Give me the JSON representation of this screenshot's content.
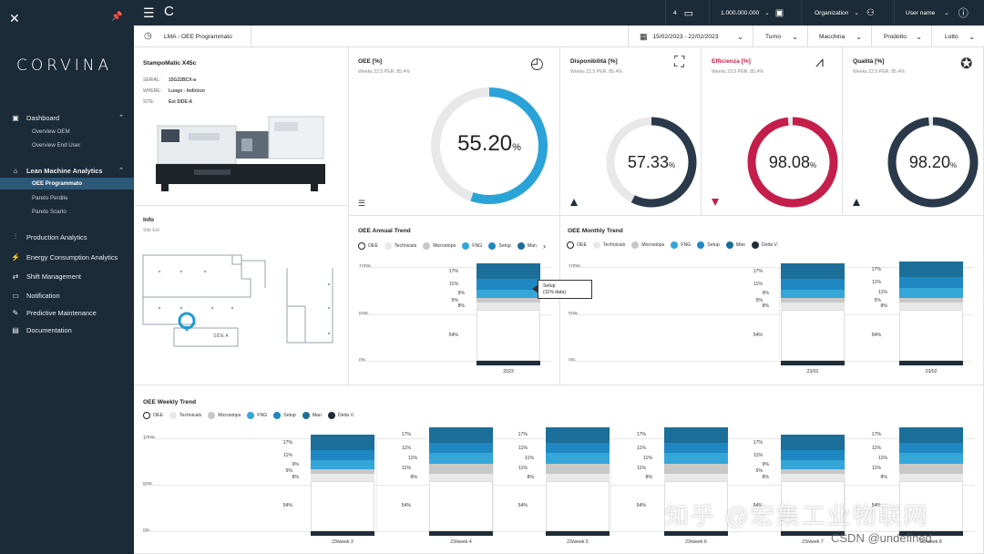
{
  "sidebar": {
    "logo": "CORVINA",
    "groups": [
      {
        "label": "Dashboard",
        "subs": [
          "Overview OEM",
          "Overview End User"
        ]
      },
      {
        "label": "Lean Machine Analytics",
        "subs": [
          "OEE Programmato",
          "Pareto Perdite",
          "Pareto Scarto"
        ]
      },
      {
        "label": "Production Analytics"
      },
      {
        "label": "Energy Consumption Analytics"
      },
      {
        "label": "Shift Management"
      },
      {
        "label": "Notification"
      },
      {
        "label": "Predictive Maintenance"
      },
      {
        "label": "Documentation"
      }
    ]
  },
  "topbar": {
    "alerts": "4",
    "value": "1.000.000.000",
    "org": "Organization",
    "user": "User name"
  },
  "subbar": {
    "breadcrumb": "LMA - OEE Programmato",
    "date": "15/02/2023 - 22/02/2023",
    "filters": [
      "Turno",
      "Macchina",
      "Prodotto",
      "Lotto"
    ]
  },
  "machine": {
    "name": "StampoMatic X45c",
    "rows": [
      {
        "k": "SERIAL:",
        "v": "15G22BCX-a"
      },
      {
        "k": "WHERE:",
        "v": "Luogo - Indirizzo"
      },
      {
        "k": "SITE:",
        "v": "Est SIDE-A"
      }
    ]
  },
  "info": {
    "title": "Info",
    "sub": "Site Est",
    "area": "SIDE A"
  },
  "oee": {
    "title": "OEE [%]",
    "sub": "Weeks 22.5 PER. 85.4%",
    "value": "55.20",
    "unit": "%",
    "fraction": 0.552
  },
  "kpis": [
    {
      "title": "Disponibilità [%]",
      "sub": "Weeks 22.5 PER. 85.4%",
      "value": "57.33",
      "unit": "%",
      "fraction": 0.5733,
      "color": "#2b3a4a"
    },
    {
      "title": "Efficienza [%]",
      "sub": "Weeks 23.5 PER. 85.4%",
      "value": "98.08",
      "unit": "%",
      "fraction": 0.9808,
      "color": "#c41f4a"
    },
    {
      "title": "Qualità [%]",
      "sub": "Weeks 22.5 PER. 85.4%",
      "value": "98.20",
      "unit": "%",
      "fraction": 0.982,
      "color": "#2b3a4a"
    }
  ],
  "legend_items": [
    "OEE",
    "Technicals",
    "Microstops",
    "FNG",
    "Setup",
    "Man",
    "Delta V."
  ],
  "colors": {
    "oee": "#ffffff",
    "technicals": "#e8e8e8",
    "microstops": "#c8c8c8",
    "fng": "#35a6d8",
    "setup": "#1f88c3",
    "man": "#1b6f98",
    "delta": "#1f2d3a"
  },
  "annual": {
    "title": "OEE Annual Trend",
    "tooltip": [
      "Setup",
      "(11% data)"
    ]
  },
  "monthly": {
    "title": "OEE Monthly Trend"
  },
  "weekly": {
    "title": "OEE Weekly Trend"
  },
  "chart_data": [
    {
      "type": "bar",
      "title": "OEE Annual Trend",
      "categories": [
        "2023"
      ],
      "ylim": [
        0,
        100
      ],
      "yticks": [
        "100%",
        "50%",
        "0%"
      ],
      "series": [
        {
          "name": "OEE",
          "values": [
            54
          ]
        },
        {
          "name": "Technicals",
          "values": [
            8
          ]
        },
        {
          "name": "Microstops",
          "values": [
            5
          ]
        },
        {
          "name": "FNG",
          "values": [
            9
          ]
        },
        {
          "name": "Setup",
          "values": [
            11
          ]
        },
        {
          "name": "Man",
          "values": [
            17
          ]
        }
      ]
    },
    {
      "type": "bar",
      "title": "OEE Monthly Trend",
      "categories": [
        "23/01",
        "23/02"
      ],
      "ylim": [
        0,
        100
      ],
      "yticks": [
        "100%",
        "50%",
        "0%"
      ],
      "series": [
        {
          "name": "OEE",
          "values": [
            54,
            54
          ]
        },
        {
          "name": "Technicals",
          "values": [
            8,
            8
          ]
        },
        {
          "name": "Microstops",
          "values": [
            5,
            5
          ]
        },
        {
          "name": "FNG",
          "values": [
            9,
            11
          ]
        },
        {
          "name": "Setup",
          "values": [
            11,
            11
          ]
        },
        {
          "name": "Man",
          "values": [
            17,
            17
          ]
        }
      ]
    },
    {
      "type": "bar",
      "title": "OEE Weekly Trend",
      "categories": [
        "23/week 3",
        "23/week 4",
        "23/week 5",
        "23/week 6",
        "23/week 7",
        "23/week 8"
      ],
      "ylim": [
        0,
        100
      ],
      "yticks": [
        "100%",
        "50%",
        "0%"
      ],
      "series": [
        {
          "name": "OEE",
          "values": [
            54,
            54,
            54,
            54,
            54,
            54
          ]
        },
        {
          "name": "Technicals",
          "values": [
            8,
            8,
            8,
            8,
            8,
            8
          ]
        },
        {
          "name": "Microstops",
          "values": [
            5,
            11,
            11,
            11,
            5,
            11
          ]
        },
        {
          "name": "FNG",
          "values": [
            9,
            11,
            11,
            11,
            9,
            11
          ]
        },
        {
          "name": "Setup",
          "values": [
            11,
            11,
            11,
            11,
            11,
            11
          ]
        },
        {
          "name": "Man",
          "values": [
            17,
            17,
            17,
            17,
            17,
            17
          ]
        }
      ]
    }
  ],
  "watermark": {
    "main": "知乎 @宏集工业物联网",
    "sub": "CSDN @undefined"
  }
}
